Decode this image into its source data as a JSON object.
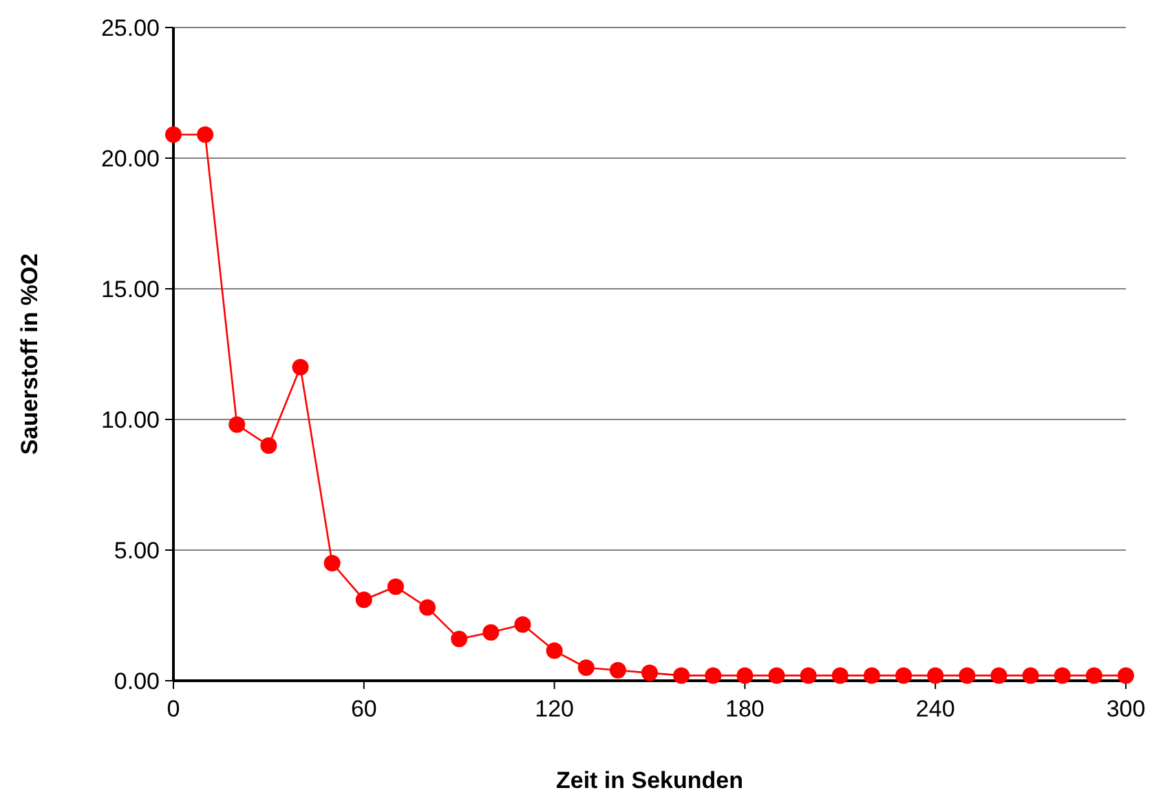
{
  "chart_data": {
    "type": "line",
    "xlabel": "Zeit in Sekunden",
    "ylabel": "Sauerstoff in %O2",
    "x": [
      0,
      10,
      20,
      30,
      40,
      50,
      60,
      70,
      80,
      90,
      100,
      110,
      120,
      130,
      140,
      150,
      160,
      170,
      180,
      190,
      200,
      210,
      220,
      230,
      240,
      250,
      260,
      270,
      280,
      290,
      300
    ],
    "series": [
      {
        "color": "#ff0000",
        "values": [
          20.9,
          20.9,
          9.8,
          9.0,
          12.0,
          4.5,
          3.1,
          3.6,
          2.8,
          1.6,
          1.85,
          2.15,
          1.15,
          0.5,
          0.4,
          0.3,
          0.2,
          0.2,
          0.2,
          0.2,
          0.2,
          0.2,
          0.2,
          0.2,
          0.2,
          0.2,
          0.2,
          0.2,
          0.2,
          0.2,
          0.2
        ]
      }
    ],
    "xlim": [
      0,
      300
    ],
    "xticks": [
      0,
      60,
      120,
      180,
      240,
      300
    ],
    "ylim": [
      0,
      25
    ],
    "yticks": [
      {
        "value": 0,
        "label": "0.00"
      },
      {
        "value": 5,
        "label": "5.00"
      },
      {
        "value": 10,
        "label": "10.00"
      },
      {
        "value": 15,
        "label": "15.00"
      },
      {
        "value": 20,
        "label": "20.00"
      },
      {
        "value": 25,
        "label": "25.00"
      }
    ],
    "grid": "y",
    "marker": "circle",
    "line_style": "solid"
  }
}
